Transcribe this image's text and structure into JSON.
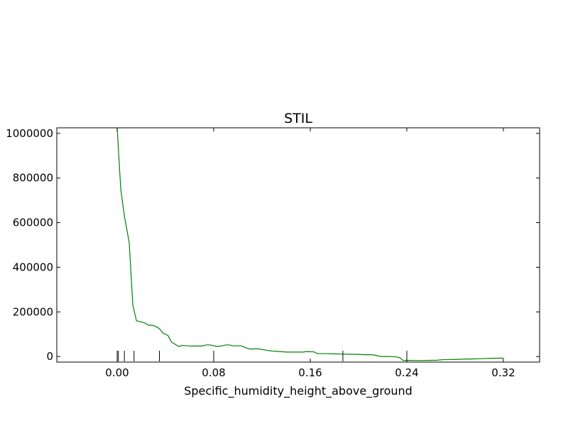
{
  "chart_data": {
    "type": "line",
    "title": "STIL",
    "xlabel": "Specific_humidity_height_above_ground",
    "ylabel": "",
    "xlim": [
      -0.05,
      0.35
    ],
    "ylim": [
      -25000,
      1025000
    ],
    "xticks": [
      0.0,
      0.08,
      0.16,
      0.24,
      0.32
    ],
    "xtick_labels": [
      "0.00",
      "0.08",
      "0.16",
      "0.24",
      "0.32"
    ],
    "yticks": [
      0,
      200000,
      400000,
      600000,
      800000,
      1000000
    ],
    "ytick_labels": [
      "0",
      "200000",
      "400000",
      "600000",
      "800000",
      "1000000"
    ],
    "grid": false,
    "series": [
      {
        "color": "#008000",
        "x": [
          0.0,
          0.003,
          0.006,
          0.01,
          0.013,
          0.016,
          0.02,
          0.023,
          0.026,
          0.029,
          0.032,
          0.035,
          0.038,
          0.042,
          0.045,
          0.048,
          0.051,
          0.054,
          0.058,
          0.064,
          0.07,
          0.074,
          0.077,
          0.083,
          0.087,
          0.09,
          0.093,
          0.096,
          0.1,
          0.103,
          0.106,
          0.109,
          0.112,
          0.115,
          0.118,
          0.122,
          0.125,
          0.128,
          0.135,
          0.141,
          0.148,
          0.154,
          0.157,
          0.163,
          0.166,
          0.173,
          0.179,
          0.186,
          0.192,
          0.198,
          0.205,
          0.211,
          0.214,
          0.218,
          0.224,
          0.23,
          0.234,
          0.237,
          0.24,
          0.25,
          0.26,
          0.264,
          0.27,
          0.28,
          0.29,
          0.293,
          0.3,
          0.31,
          0.32
        ],
        "y": [
          1025000,
          750000,
          630000,
          510000,
          230000,
          160000,
          155000,
          150000,
          140000,
          140000,
          135000,
          125000,
          105000,
          95000,
          65000,
          55000,
          45000,
          50000,
          48000,
          47000,
          47000,
          52000,
          52000,
          45000,
          48000,
          52000,
          52000,
          48000,
          48000,
          48000,
          40000,
          35000,
          33000,
          35000,
          33000,
          30000,
          27000,
          25000,
          22000,
          20000,
          20000,
          20000,
          22000,
          21000,
          13000,
          13000,
          12000,
          11000,
          10000,
          10000,
          8000,
          8000,
          6000,
          0,
          0,
          -1000,
          -5000,
          -18000,
          -17000,
          -18000,
          -17000,
          -17000,
          -14000,
          -13000,
          -11000,
          -11000,
          -10000,
          -8000,
          -7000
        ]
      }
    ],
    "rug_x": [
      0.0,
      0.001,
      0.006,
      0.014,
      0.035,
      0.08,
      0.187,
      0.24
    ]
  }
}
